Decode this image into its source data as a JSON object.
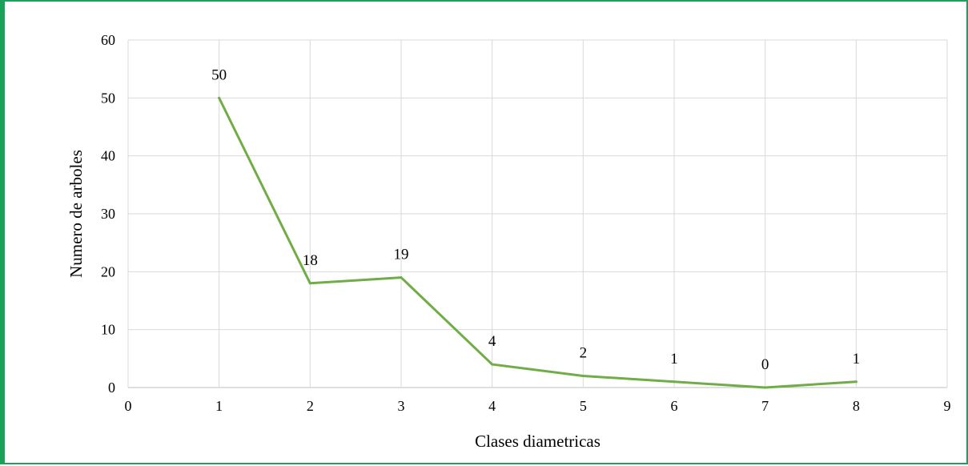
{
  "chart_data": {
    "type": "line",
    "title": "",
    "xlabel": "Clases diametricas",
    "ylabel": "Numero de arboles",
    "x": [
      1,
      2,
      3,
      4,
      5,
      6,
      7,
      8
    ],
    "series": [
      {
        "values": [
          50,
          18,
          19,
          4,
          2,
          1,
          0,
          1
        ],
        "color": "#70ad47"
      }
    ],
    "data_labels": [
      "50",
      "18",
      "19",
      "4",
      "2",
      "1",
      "0",
      "1"
    ],
    "xlim": [
      0,
      9
    ],
    "ylim": [
      0,
      60
    ],
    "xticks": [
      "0",
      "1",
      "2",
      "3",
      "4",
      "5",
      "6",
      "7",
      "8",
      "9"
    ],
    "yticks": [
      "0",
      "10",
      "20",
      "30",
      "40",
      "50",
      "60"
    ],
    "grid": true,
    "legend": "none",
    "frame_color": "#1fa05a",
    "grid_color": "#d9d9d9"
  }
}
